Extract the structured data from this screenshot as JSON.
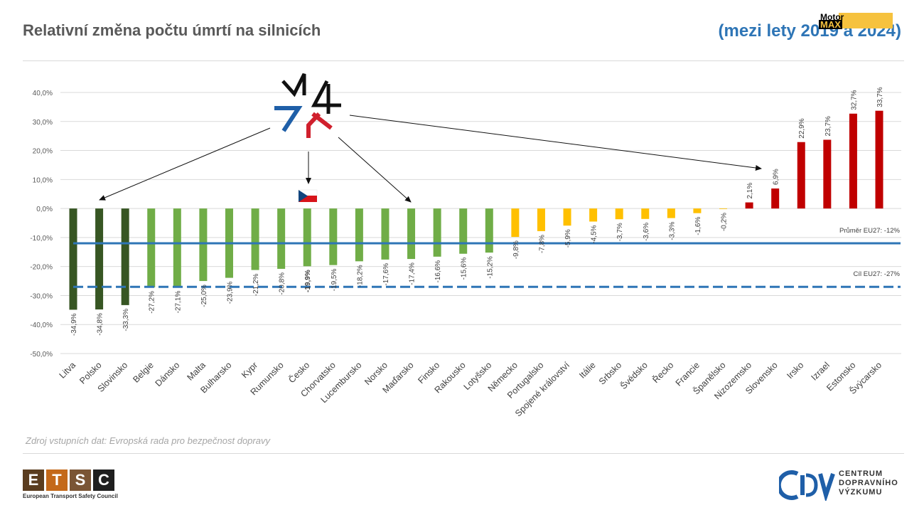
{
  "header": {
    "title": "Relativní změna počtu úmrtí na silnicích",
    "subtitle": "(mezi lety 2019 a 2024)"
  },
  "watermark": {
    "top": "Motor",
    "bottom": "MAX"
  },
  "source": "Zdroj vstupních dat: Evropská rada pro bezpečnost dopravy",
  "footer": {
    "etsc_letters": [
      "E",
      "T",
      "S",
      "C"
    ],
    "etsc_name": "European Transport Safety Council",
    "cdv_mark": "CDV",
    "cdv_lines": [
      "CENTRUM",
      "DOPRAVNÍHO",
      "VÝZKUMU"
    ]
  },
  "colors": {
    "dark_green": "#375623",
    "green": "#70ad47",
    "yellow": "#ffc000",
    "red": "#c00000",
    "blue": "#2e75b6",
    "etsc": [
      "#5b3d1f",
      "#c4691a",
      "#7a5535",
      "#1f1f1f"
    ],
    "logo_blue": "#1f5fa8",
    "logo_red": "#d0202d"
  },
  "chart_data": {
    "type": "bar",
    "categories": [
      "Litva",
      "Polsko",
      "Slovinsko",
      "Belgie",
      "Dánsko",
      "Malta",
      "Bulharsko",
      "Kypr",
      "Rumunsko",
      "Česko",
      "Chorvatsko",
      "Lucembursko",
      "Norsko",
      "Maďarsko",
      "Finsko",
      "Rakousko",
      "Lotyšsko",
      "Německo",
      "Portugalsko",
      "Spojené království",
      "Itálie",
      "Srbsko",
      "Švédsko",
      "Řecko",
      "Francie",
      "Španělsko",
      "Nizozemsko",
      "Slovensko",
      "Irsko",
      "Izrael",
      "Estonsko",
      "Švýcarsko"
    ],
    "values": [
      -34.9,
      -34.8,
      -33.3,
      -27.2,
      -27.1,
      -25.0,
      -23.9,
      -21.2,
      -20.8,
      -19.9,
      -19.5,
      -18.2,
      -17.6,
      -17.4,
      -16.6,
      -15.6,
      -15.2,
      -9.8,
      -7.8,
      -5.9,
      -4.5,
      -3.7,
      -3.6,
      -3.3,
      -1.6,
      -0.2,
      2.1,
      6.9,
      22.9,
      23.7,
      32.7,
      33.7
    ],
    "data_labels": [
      "-34,9%",
      "-34,8%",
      "-33,3%",
      "-27,2%",
      "-27,1%",
      "-25,0%",
      "-23,9%",
      "-21,2%",
      "-20,8%",
      "-19,9%",
      "-19,5%",
      "-18,2%",
      "-17,6%",
      "-17,4%",
      "-16,6%",
      "-15,6%",
      "-15,2%",
      "-9,8%",
      "-7,8%",
      "-5,9%",
      "-4,5%",
      "-3,7%",
      "-3,6%",
      "-3,3%",
      "-1,6%",
      "-0,2%",
      "2,1%",
      "6,9%",
      "22,9%",
      "23,7%",
      "32,7%",
      "33,7%"
    ],
    "bar_colors": [
      "dark_green",
      "dark_green",
      "dark_green",
      "green",
      "green",
      "green",
      "green",
      "green",
      "green",
      "green",
      "green",
      "green",
      "green",
      "green",
      "green",
      "green",
      "green",
      "yellow",
      "yellow",
      "yellow",
      "yellow",
      "yellow",
      "yellow",
      "yellow",
      "yellow",
      "yellow",
      "red",
      "red",
      "red",
      "red",
      "red",
      "red"
    ],
    "highlight": "Česko",
    "ylim": [
      -50,
      40
    ],
    "yticks": [
      40,
      30,
      20,
      10,
      0,
      -10,
      -20,
      -30,
      -40,
      -50
    ],
    "ytick_labels": [
      "40,0%",
      "30,0%",
      "20,0%",
      "10,0%",
      "0,0%",
      "-10,0%",
      "-20,0%",
      "-30,0%",
      "-40,0%",
      "-50,0%"
    ],
    "reference_lines": [
      {
        "name": "Průměr EU27: -12%",
        "value": -12,
        "style": "solid"
      },
      {
        "name": "Cíl EU27: -27%",
        "value": -27,
        "style": "dashed"
      }
    ],
    "grid": true
  }
}
